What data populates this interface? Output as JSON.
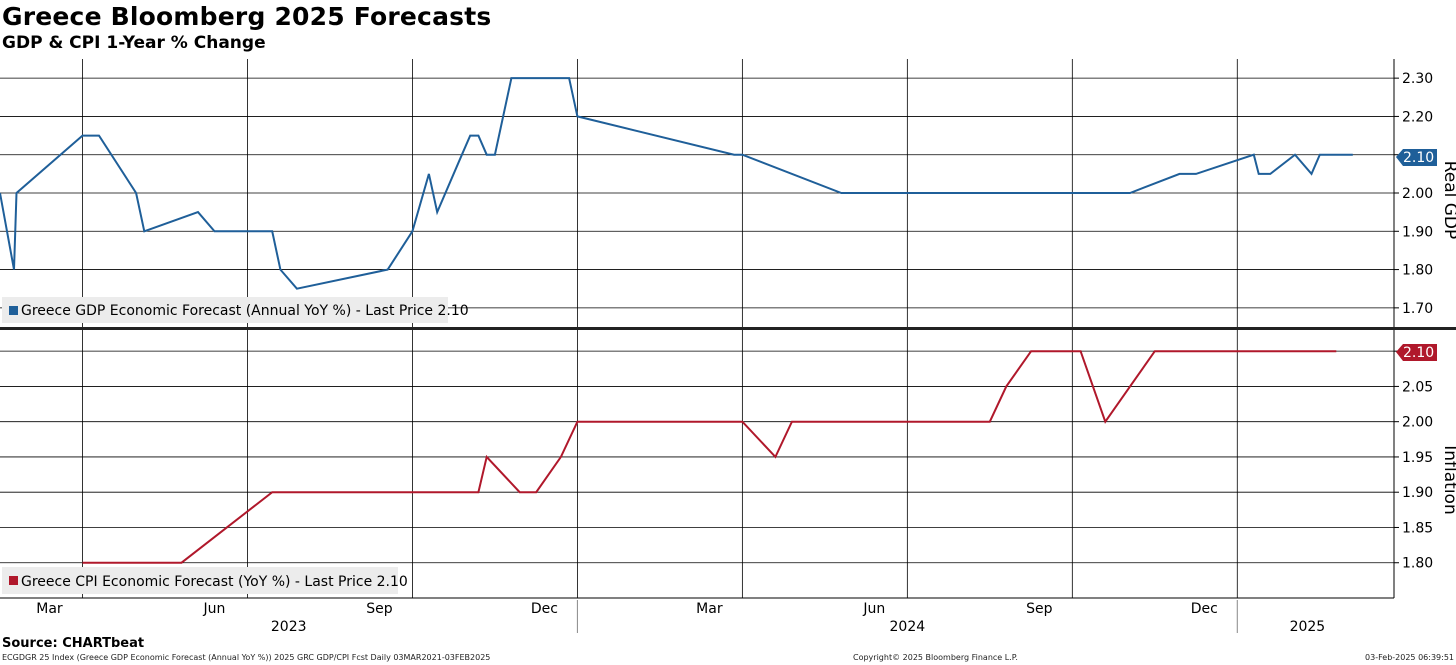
{
  "title": "Greece Bloomberg 2025 Forecasts",
  "subtitle": "GDP & CPI 1-Year % Change",
  "source": "Source: CHARTbeat",
  "footer": {
    "left": "ECGDGR 25 Index (Greece GDP Economic Forecast (Annual YoY %)) 2025 GRC GDP/CPI Fcst  Daily 03MAR2021-03FEB2025",
    "center": "Copyright© 2025 Bloomberg Finance L.P.",
    "right": "03-Feb-2025 06:39:51"
  },
  "colors": {
    "gdp": "#1f5f99",
    "cpi": "#b0182b",
    "grid": "#000000",
    "legend_bg": "#ececec",
    "background": "#ffffff"
  },
  "chart_data": [
    {
      "type": "line",
      "panel": "top",
      "ylabel": "Real GDP",
      "ylim": [
        1.65,
        2.35
      ],
      "yticks": [
        "1.70",
        "1.80",
        "1.90",
        "2.00",
        "2.10",
        "2.20",
        "2.30"
      ],
      "last_price_label": "2.10",
      "legend": "Greece GDP Economic Forecast (Annual YoY %) - Last Price 2.10",
      "series": [
        {
          "name": "Greece GDP Economic Forecast (Annual YoY %)",
          "x": [
            0,
            0.17,
            0.2,
            1.0,
            1.2,
            1.65,
            1.75,
            2.4,
            2.6,
            3.3,
            3.4,
            3.6,
            4.7,
            5.0,
            5.2,
            5.3,
            5.6,
            5.7,
            5.8,
            5.9,
            6.0,
            6.2,
            6.6,
            6.9,
            7.0,
            8.9,
            9.0,
            10.2,
            10.6,
            11.4,
            11.8,
            12.6,
            13.1,
            13.7,
            14.3,
            14.5,
            15.2,
            15.26,
            15.4,
            15.7,
            15.9,
            16.0,
            16.3,
            16.4
          ],
          "y": [
            2.0,
            1.8,
            2.0,
            2.15,
            2.15,
            2.0,
            1.9,
            1.95,
            1.9,
            1.9,
            1.8,
            1.75,
            1.8,
            1.9,
            2.05,
            1.95,
            2.1,
            2.15,
            2.15,
            2.1,
            2.1,
            2.3,
            2.3,
            2.3,
            2.2,
            2.1,
            2.1,
            2.0,
            2.0,
            2.0,
            2.0,
            2.0,
            2.0,
            2.0,
            2.05,
            2.05,
            2.1,
            2.05,
            2.05,
            2.1,
            2.05,
            2.1,
            2.1,
            2.1
          ]
        }
      ]
    },
    {
      "type": "line",
      "panel": "bottom",
      "ylabel": "Inflation",
      "ylim": [
        1.75,
        2.13
      ],
      "yticks": [
        "1.80",
        "1.85",
        "1.90",
        "1.95",
        "2.00",
        "2.05",
        "2.10"
      ],
      "last_price_label": "2.10",
      "legend": "Greece CPI Economic Forecast (YoY %) - Last Price 2.10",
      "series": [
        {
          "name": "Greece CPI Economic Forecast (YoY %)",
          "x": [
            1.0,
            2.2,
            3.3,
            3.8,
            4.2,
            5.8,
            5.9,
            6.3,
            6.5,
            6.8,
            7.0,
            9.0,
            9.4,
            9.6,
            10.5,
            11.5,
            12.0,
            12.2,
            12.5,
            13.1,
            13.4,
            14.0,
            16.2
          ],
          "y": [
            1.8,
            1.8,
            1.9,
            1.9,
            1.9,
            1.9,
            1.95,
            1.9,
            1.9,
            1.95,
            2.0,
            2.0,
            1.95,
            2.0,
            2.0,
            2.0,
            2.0,
            2.05,
            2.1,
            2.1,
            2.0,
            2.1,
            2.1
          ]
        }
      ]
    }
  ],
  "x_axis": {
    "months": [
      {
        "label": "Mar",
        "x": 0.6
      },
      {
        "label": "Jun",
        "x": 2.6
      },
      {
        "label": "Sep",
        "x": 4.6
      },
      {
        "label": "Dec",
        "x": 6.6
      },
      {
        "label": "Mar",
        "x": 8.6
      },
      {
        "label": "Jun",
        "x": 10.6
      },
      {
        "label": "Sep",
        "x": 12.6
      },
      {
        "label": "Dec",
        "x": 14.6
      }
    ],
    "gridlines": [
      1,
      3,
      5,
      7,
      9,
      11,
      13,
      15
    ],
    "years": [
      {
        "label": "2023",
        "x": 3.5
      },
      {
        "label": "2024",
        "x": 11.0
      },
      {
        "label": "2025",
        "x": 15.85
      }
    ],
    "year_dividers": [
      7.0,
      15.0
    ],
    "range": [
      0,
      16.9
    ]
  }
}
